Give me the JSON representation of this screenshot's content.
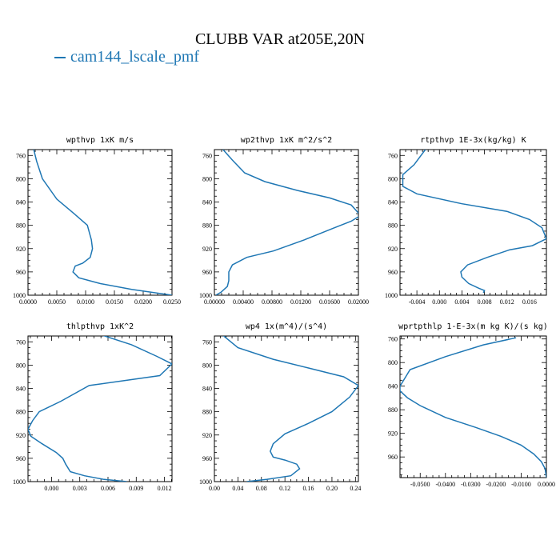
{
  "title": "CLUBB VAR at205E,20N",
  "legend": {
    "label": "cam144_lscale_pmf",
    "color": "#1f77b4"
  },
  "line_color": "#1f77b4",
  "chart_data": [
    {
      "type": "line",
      "title": "wpthvp  1xK m/s",
      "xlim": [
        0,
        0.025
      ],
      "xticks": [
        0,
        0.005,
        0.01,
        0.015,
        0.02,
        0.025
      ],
      "xtick_labels": [
        "0.0000",
        "0.0050",
        "0.0100",
        "0.0150",
        "0.0200",
        "0.0250"
      ],
      "ylim": [
        750,
        1000
      ],
      "yticks": [
        760,
        800,
        840,
        880,
        920,
        960,
        1000
      ],
      "x": [
        0.001,
        0.0015,
        0.0025,
        0.005,
        0.008,
        0.0103,
        0.011,
        0.0112,
        0.0108,
        0.0095,
        0.0082,
        0.0078,
        0.0088,
        0.0125,
        0.018,
        0.025
      ],
      "y": [
        750,
        770,
        800,
        835,
        860,
        880,
        905,
        920,
        935,
        945,
        950,
        960,
        970,
        980,
        990,
        1000
      ]
    },
    {
      "type": "line",
      "title": "wp2thvp  1xK m^2/s^2",
      "xlim": [
        0,
        0.02
      ],
      "xticks": [
        0,
        0.004,
        0.008,
        0.012,
        0.016,
        0.02
      ],
      "xtick_labels": [
        "0.00000",
        "0.00400",
        "0.00800",
        "0.01200",
        "0.01600",
        "0.02000"
      ],
      "ylim": [
        750,
        1000
      ],
      "yticks": [
        760,
        800,
        840,
        880,
        920,
        960,
        1000
      ],
      "x": [
        0.0012,
        0.0025,
        0.0042,
        0.007,
        0.0115,
        0.016,
        0.019,
        0.0203,
        0.019,
        0.0165,
        0.0125,
        0.0082,
        0.0045,
        0.0025,
        0.002,
        0.002,
        0.0018,
        0.0009,
        0.0002
      ],
      "y": [
        750,
        768,
        790,
        805,
        820,
        833,
        845,
        863,
        873,
        885,
        905,
        924,
        935,
        948,
        960,
        975,
        985,
        995,
        1000
      ]
    },
    {
      "type": "line",
      "title": "rtpthvp  1E-3x(kg/kg) K",
      "xlim": [
        -0.007,
        0.019
      ],
      "xticks": [
        -0.004,
        0,
        0.004,
        0.008,
        0.012,
        0.016
      ],
      "xtick_labels": [
        "-0.004",
        "0.000",
        "0.004",
        "0.008",
        "0.012",
        "0.016"
      ],
      "ylim": [
        750,
        1000
      ],
      "yticks": [
        760,
        800,
        840,
        880,
        920,
        960,
        1000
      ],
      "x": [
        -0.0025,
        -0.0045,
        -0.0065,
        -0.0065,
        -0.004,
        0.004,
        0.012,
        0.016,
        0.0182,
        0.019,
        0.0165,
        0.0125,
        0.0085,
        0.005,
        0.0038,
        0.004,
        0.0052,
        0.007,
        0.008,
        0.0078
      ],
      "y": [
        750,
        776,
        793,
        813,
        826,
        843,
        856,
        870,
        884,
        903,
        915,
        922,
        935,
        948,
        960,
        969,
        980,
        988,
        992,
        996
      ]
    },
    {
      "type": "line",
      "title": "thlpthvp  1xK^2",
      "xlim": [
        -0.0025,
        0.0128
      ],
      "xticks": [
        0,
        0.003,
        0.006,
        0.009,
        0.012
      ],
      "xtick_labels": [
        "0.000",
        "0.003",
        "0.006",
        "0.009",
        "0.012"
      ],
      "ylim": [
        750,
        1000
      ],
      "yticks": [
        760,
        800,
        840,
        880,
        920,
        960,
        1000
      ],
      "x": [
        0.0047,
        0.0085,
        0.0112,
        0.0128,
        0.0115,
        0.004,
        0.001,
        -0.0013,
        -0.002,
        -0.0025,
        -0.0022,
        -0.001,
        0.0005,
        0.0012,
        0.0015,
        0.002,
        0.0035,
        0.0055,
        0.008
      ],
      "y": [
        745,
        765,
        785,
        798,
        818,
        835,
        862,
        880,
        895,
        910,
        922,
        935,
        950,
        960,
        970,
        983,
        990,
        996,
        1000
      ]
    },
    {
      "type": "line",
      "title": "wp4  1x(m^4)/(s^4)",
      "xlim": [
        0,
        0.245
      ],
      "xticks": [
        0,
        0.04,
        0.08,
        0.12,
        0.16,
        0.2,
        0.24
      ],
      "xtick_labels": [
        "0.00",
        "0.04",
        "0.08",
        "0.12",
        "0.16",
        "0.20",
        "0.24"
      ],
      "ylim": [
        750,
        1000
      ],
      "yticks": [
        760,
        800,
        840,
        880,
        920,
        960,
        1000
      ],
      "x": [
        0.01,
        0.04,
        0.1,
        0.16,
        0.22,
        0.245,
        0.23,
        0.2,
        0.16,
        0.12,
        0.1,
        0.095,
        0.1,
        0.12,
        0.14,
        0.145,
        0.13,
        0.09,
        0.055
      ],
      "y": [
        745,
        770,
        790,
        805,
        820,
        835,
        855,
        880,
        900,
        918,
        935,
        948,
        958,
        963,
        970,
        978,
        990,
        996,
        1000
      ]
    },
    {
      "type": "line",
      "title": "wprtpthlp  1-E-3x(m kg K)/(s kg)",
      "xlim": [
        -0.058,
        0
      ],
      "xticks": [
        -0.05,
        -0.04,
        -0.03,
        -0.02,
        -0.01,
        0
      ],
      "xtick_labels": [
        "-0.0500",
        "-0.0400",
        "-0.0300",
        "-0.0200",
        "-0.0100",
        "0.0000"
      ],
      "ylim": [
        755,
        995
      ],
      "yticks": [
        760,
        800,
        840,
        880,
        920,
        960
      ],
      "x": [
        -0.012,
        -0.025,
        -0.04,
        -0.054,
        -0.056,
        -0.058,
        -0.058,
        -0.055,
        -0.05,
        -0.04,
        -0.028,
        -0.018,
        -0.01,
        -0.005,
        -0.002,
        -0.0005,
        0
      ],
      "y": [
        758,
        770,
        790,
        812,
        826,
        840,
        848,
        860,
        873,
        893,
        910,
        925,
        940,
        955,
        968,
        980,
        995
      ]
    }
  ]
}
